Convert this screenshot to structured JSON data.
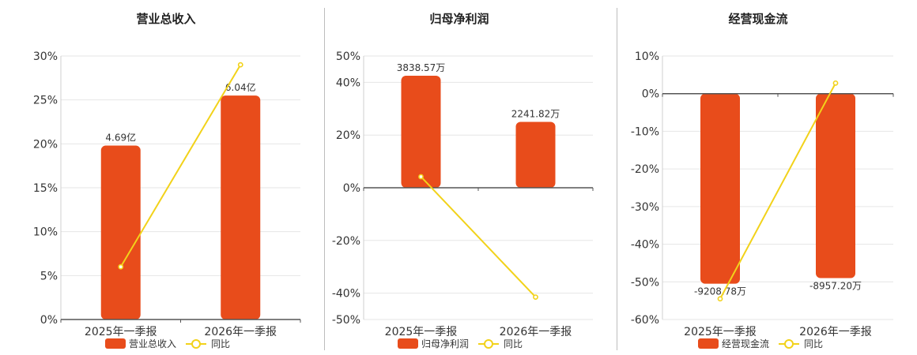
{
  "colors": {
    "bar": "#e84c1b",
    "line": "#f2d21a",
    "grid": "#e6e6e6",
    "axis": "#555555",
    "text": "#333333"
  },
  "chart_data": [
    {
      "type": "bar",
      "title": "营业总收入",
      "categories": [
        "2025年一季报",
        "2026年一季报"
      ],
      "series": [
        {
          "name": "营业总收入",
          "kind": "bar",
          "values": [
            19.8,
            25.5
          ],
          "labels": [
            "4.69亿",
            "6.04亿"
          ]
        },
        {
          "name": "同比",
          "kind": "line",
          "values": [
            6.0,
            29.0
          ]
        }
      ],
      "ylim": [
        0,
        30
      ],
      "yticks": [
        0,
        5,
        10,
        15,
        20,
        25,
        30
      ],
      "ytick_labels": [
        "0%",
        "5%",
        "10%",
        "15%",
        "20%",
        "25%",
        "30%"
      ],
      "grid": true,
      "legend": "bottom-center"
    },
    {
      "type": "bar",
      "title": "归母净利润",
      "categories": [
        "2025年一季报",
        "2026年一季报"
      ],
      "series": [
        {
          "name": "归母净利润",
          "kind": "bar",
          "values": [
            42.5,
            25.0
          ],
          "labels": [
            "3838.57万",
            "2241.82万"
          ]
        },
        {
          "name": "同比",
          "kind": "line",
          "values": [
            4.2,
            -41.5
          ]
        }
      ],
      "ylim": [
        -50,
        50
      ],
      "yticks": [
        -50,
        -40,
        -20,
        0,
        20,
        40,
        50
      ],
      "ytick_labels": [
        "-50%",
        "-40%",
        "-20%",
        "0%",
        "20%",
        "40%",
        "50%"
      ],
      "grid": true,
      "legend": "bottom-center"
    },
    {
      "type": "bar",
      "title": "经营现金流",
      "categories": [
        "2025年一季报",
        "2026年一季报"
      ],
      "series": [
        {
          "name": "经营现金流",
          "kind": "bar",
          "values": [
            -50.5,
            -49.0
          ],
          "labels": [
            "-9208.78万",
            "-8957.20万"
          ]
        },
        {
          "name": "同比",
          "kind": "line",
          "values": [
            -54.5,
            2.8
          ]
        }
      ],
      "ylim": [
        -60,
        10
      ],
      "yticks": [
        -60,
        -50,
        -40,
        -30,
        -20,
        -10,
        0,
        10
      ],
      "ytick_labels": [
        "-60%",
        "-50%",
        "-40%",
        "-30%",
        "-20%",
        "-10%",
        "0%",
        "10%"
      ],
      "grid": true,
      "legend": "bottom-center"
    }
  ]
}
